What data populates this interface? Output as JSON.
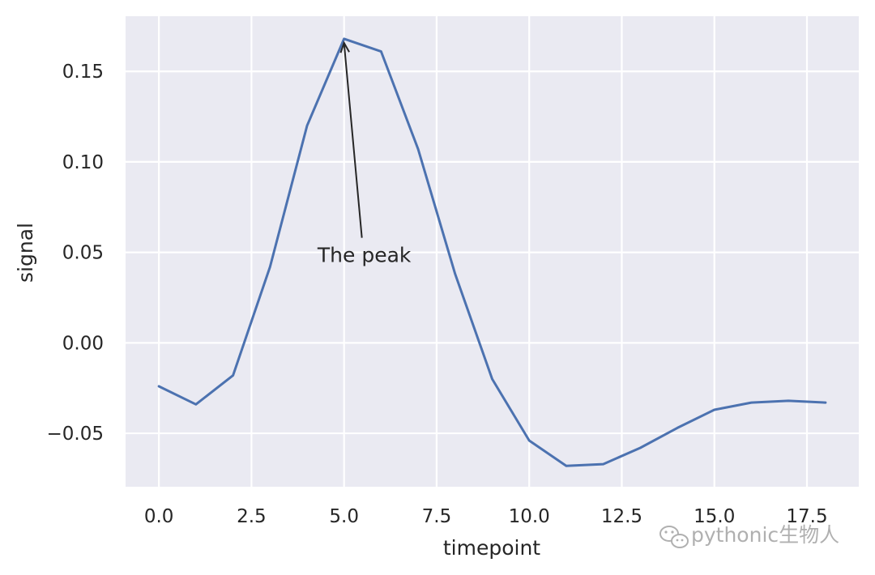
{
  "chart_data": {
    "type": "line",
    "title": "",
    "xlabel": "timepoint",
    "ylabel": "signal",
    "xlim": [
      -0.9,
      18.9
    ],
    "ylim": [
      -0.0795,
      0.1805
    ],
    "x_ticks": [
      0.0,
      2.5,
      5.0,
      7.5,
      10.0,
      12.5,
      15.0,
      17.5
    ],
    "x_tick_labels": [
      "0.0",
      "2.5",
      "5.0",
      "7.5",
      "10.0",
      "12.5",
      "15.0",
      "17.5"
    ],
    "y_ticks": [
      -0.05,
      0.0,
      0.05,
      0.1,
      0.15
    ],
    "y_tick_labels": [
      "−0.05",
      "0.00",
      "0.05",
      "0.10",
      "0.15"
    ],
    "grid": true,
    "background_color": "#eaeaf2",
    "series": [
      {
        "color": "#4c72b0",
        "x": [
          0,
          1,
          2,
          3,
          4,
          5,
          6,
          7,
          8,
          9,
          10,
          11,
          12,
          13,
          14,
          15,
          16,
          17,
          18
        ],
        "values": [
          -0.024,
          -0.034,
          -0.018,
          0.042,
          0.12,
          0.168,
          0.161,
          0.107,
          0.038,
          -0.02,
          -0.054,
          -0.068,
          -0.067,
          -0.058,
          -0.047,
          -0.037,
          -0.033,
          -0.032,
          -0.033
        ]
      }
    ],
    "annotations": [
      {
        "text": "The peak",
        "x": 5.0,
        "y": 0.168,
        "text_x": 5.0,
        "text_y": 0.05
      }
    ]
  },
  "watermark": {
    "text": "pythonic生物人",
    "icon": "wechat-icon"
  }
}
